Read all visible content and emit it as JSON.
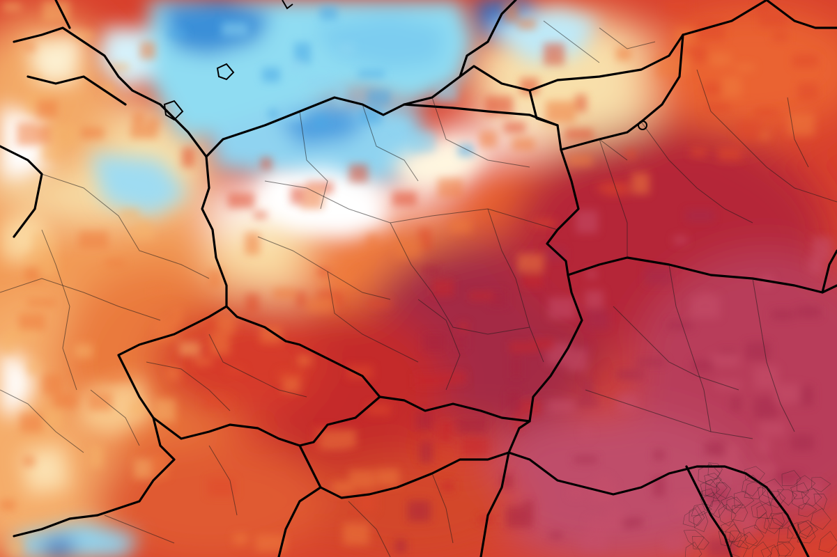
{
  "map": {
    "type": "temperature-anomaly-heatmap",
    "region": "Central Europe",
    "legend": "none",
    "palette": {
      "deep_blue": "#1f6fbf",
      "blue": "#4aa8e6",
      "light_blue": "#8fd6f2",
      "white": "#ffffff",
      "cream": "#fbe9b5",
      "light_orange": "#f6b46a",
      "orange": "#ef7c3c",
      "red_orange": "#e0492a",
      "red": "#c9262a",
      "dark_red": "#a7243c",
      "crimson": "#a52a4e",
      "rose": "#c6506a",
      "border": "#000000"
    }
  }
}
